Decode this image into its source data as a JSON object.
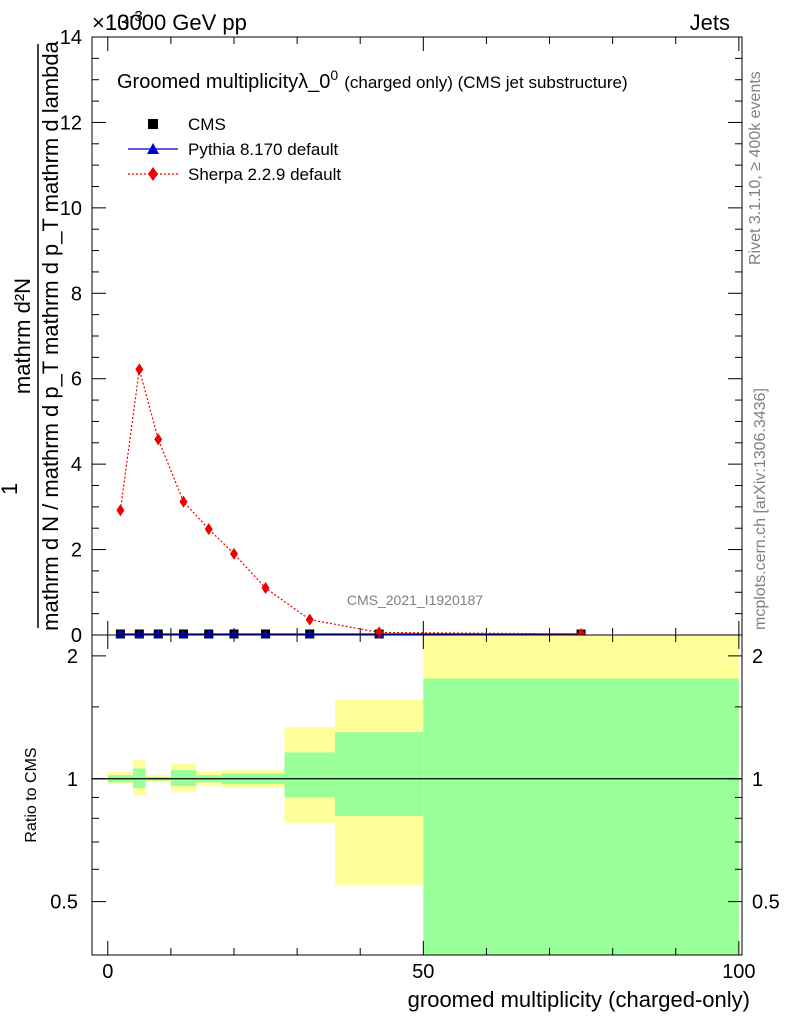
{
  "header": {
    "energy_label": "13000 GeV pp",
    "category_label": "Jets",
    "exponent_label": "×10",
    "exponent_power": "-3"
  },
  "side_labels": {
    "rivet": "Rivet 3.1.10, ≥ 400k events",
    "mcplots": "mcplots.cern.ch [arXiv:1306.3436]"
  },
  "chart_data": [
    {
      "type": "line",
      "title": "Groomed multiplicity",
      "title_symbol": "λ_0",
      "title_power": "0",
      "title_tail": "(charged only) (CMS jet substructure)",
      "ylabel_numerator": "mathrm d²N",
      "ylabel_denominator": "mathrm d N / mathrm d p_T mathrm d p_T mathrm d lambda",
      "ylabel_prefix": "1",
      "ylim": [
        0,
        14
      ],
      "yticks": [
        "0",
        "2",
        "4",
        "6",
        "8",
        "10",
        "12",
        "14"
      ],
      "watermark": "CMS_2021_I1920187",
      "legend_position": "top-left",
      "series": [
        {
          "name": "CMS",
          "marker": "square",
          "color": "#000000",
          "x": [
            2,
            5,
            8,
            12,
            16,
            20,
            25,
            32,
            43,
            75
          ],
          "y": [
            0.02,
            0.02,
            0.02,
            0.02,
            0.02,
            0.02,
            0.02,
            0.02,
            0.01,
            0.01
          ]
        },
        {
          "name": "Pythia 8.170 default",
          "marker": "triangle",
          "color": "#0000cc",
          "x": [
            2,
            5,
            8,
            12,
            16,
            20,
            25,
            32,
            43,
            75
          ],
          "y": [
            0.02,
            0.02,
            0.02,
            0.02,
            0.02,
            0.02,
            0.02,
            0.02,
            0.01,
            0.01
          ]
        },
        {
          "name": "Sherpa 2.2.9 default",
          "marker": "diamond",
          "color": "#ee0000",
          "x": [
            2,
            5,
            8,
            12,
            16,
            20,
            25,
            32,
            43,
            75
          ],
          "y": [
            2.92,
            6.22,
            4.58,
            3.12,
            2.48,
            1.9,
            1.1,
            0.36,
            0.06,
            0.0
          ]
        }
      ]
    },
    {
      "type": "area",
      "ylabel": "Ratio to CMS",
      "xlabel": "groomed multiplicity (charged-only)",
      "xlim": [
        -2.5,
        100.5
      ],
      "xticks": [
        "0",
        "50",
        "100"
      ],
      "ytick_labels": [
        "0.5",
        "1",
        "2"
      ],
      "ytick_values": [
        0.5,
        1,
        2
      ],
      "ylim": [
        0.37,
        2.25
      ],
      "reference_line": 1,
      "bands": [
        {
          "x0": 0,
          "x1": 4,
          "yellow": [
            0.97,
            1.04
          ],
          "green": [
            0.98,
            1.02
          ]
        },
        {
          "x0": 4,
          "x1": 6,
          "yellow": [
            0.91,
            1.11
          ],
          "green": [
            0.95,
            1.06
          ]
        },
        {
          "x0": 6,
          "x1": 10,
          "yellow": [
            0.98,
            1.02
          ],
          "green": [
            0.99,
            1.01
          ]
        },
        {
          "x0": 10,
          "x1": 14,
          "yellow": [
            0.93,
            1.09
          ],
          "green": [
            0.96,
            1.05
          ]
        },
        {
          "x0": 14,
          "x1": 18,
          "yellow": [
            0.96,
            1.04
          ],
          "green": [
            0.98,
            1.02
          ]
        },
        {
          "x0": 18,
          "x1": 22,
          "yellow": [
            0.95,
            1.05
          ],
          "green": [
            0.97,
            1.03
          ]
        },
        {
          "x0": 22,
          "x1": 28,
          "yellow": [
            0.95,
            1.05
          ],
          "green": [
            0.97,
            1.03
          ]
        },
        {
          "x0": 28,
          "x1": 36,
          "yellow": [
            0.78,
            1.34
          ],
          "green": [
            0.9,
            1.16
          ]
        },
        {
          "x0": 36,
          "x1": 50,
          "yellow": [
            0.55,
            1.56
          ],
          "green": [
            0.81,
            1.3
          ]
        },
        {
          "x0": 50,
          "x1": 100,
          "yellow": [
            0.37,
            2.25
          ],
          "green": [
            0.37,
            1.76
          ]
        }
      ]
    }
  ]
}
